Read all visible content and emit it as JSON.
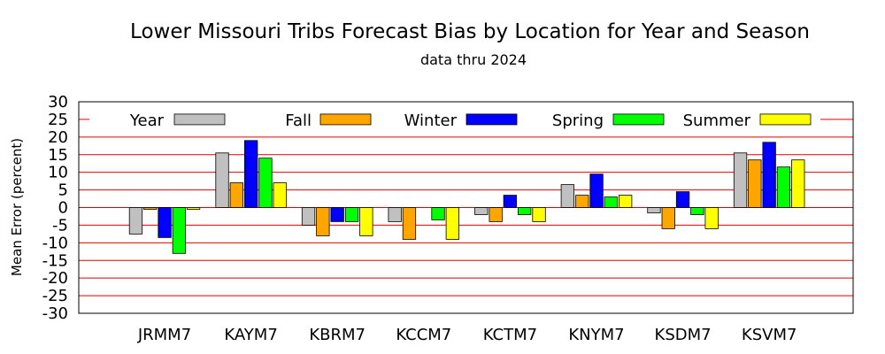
{
  "chart_data": {
    "type": "bar",
    "title": "Lower Missouri Tribs Forecast Bias by Location for Year and Season",
    "subtitle": "data thru 2024",
    "xlabel": "",
    "ylabel": "Mean Error (percent)",
    "ylim": [
      -30,
      30
    ],
    "y_ticks": [
      "30",
      "25",
      "20",
      "15",
      "10",
      "5",
      "0",
      "-5",
      "-10",
      "-15",
      "-20",
      "-25",
      "-30"
    ],
    "grid": true,
    "legend_position": "top",
    "categories": [
      "JRMM7",
      "KAYM7",
      "KBRM7",
      "KCCM7",
      "KCTM7",
      "KNYM7",
      "KSDM7",
      "KSVM7"
    ],
    "series": [
      {
        "name": "Year",
        "color": "#c0c0c0",
        "values": [
          -7.5,
          15.5,
          -5,
          -4,
          -2,
          6.5,
          -1.5,
          15.5
        ]
      },
      {
        "name": "Fall",
        "color": "#ffa500",
        "values": [
          -0.5,
          7,
          -8,
          -9,
          -4,
          3.5,
          -6,
          13.5
        ]
      },
      {
        "name": "Winter",
        "color": "#0000ff",
        "values": [
          -8.5,
          19,
          -4,
          0,
          3.5,
          9.5,
          4.5,
          18.5
        ]
      },
      {
        "name": "Spring",
        "color": "#00ff00",
        "values": [
          -13,
          14,
          -4,
          -3.5,
          -2,
          3,
          -2,
          11.5
        ]
      },
      {
        "name": "Summer",
        "color": "#ffff00",
        "values": [
          -0.5,
          7,
          -8,
          -9,
          -4,
          3.5,
          -6,
          13.5
        ]
      }
    ]
  }
}
